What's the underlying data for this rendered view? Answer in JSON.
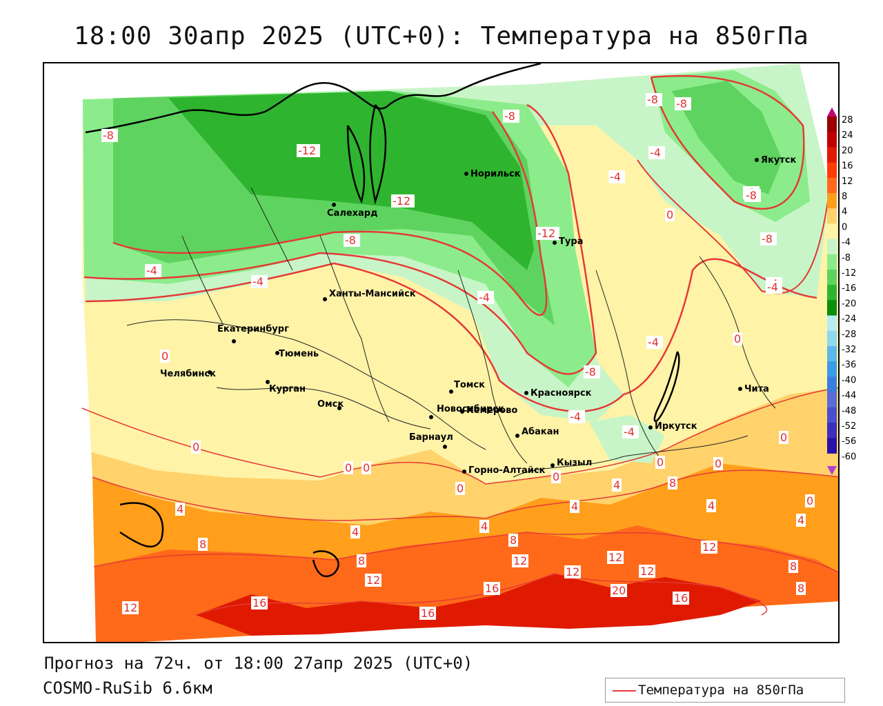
{
  "title": "18:00 30апр 2025 (UTC+0): Температура на 850гПа",
  "forecast_text": "Прогноз на 72ч. от 18:00 27апр 2025 (UTC+0)",
  "model_text": "COSMO-RuSib 6.6км",
  "legend_label": "Температура на 850гПа",
  "colors": {
    "contour_line": "#e53935",
    "t_12_16": "#ff6a1a",
    "t_8_12": "#ff9f1c",
    "t_4_8": "#ffd26b",
    "t_0_4": "#fff3a8",
    "t_m4_0": "#c8f5c8",
    "t_m8_m4": "#8cec8c",
    "t_m12_m8": "#5fd35f",
    "t_m16_m12": "#2fb42f"
  },
  "colorbar": {
    "ticks": [
      "28",
      "24",
      "20",
      "16",
      "12",
      "8",
      "4",
      "0",
      "-4",
      "-8",
      "-12",
      "-16",
      "-20",
      "-24",
      "-28",
      "-32",
      "-36",
      "-40",
      "-44",
      "-48",
      "-52",
      "-56",
      "-60"
    ],
    "colors": [
      "#9b0000",
      "#c00000",
      "#e01a00",
      "#ff3c00",
      "#ff6a1a",
      "#ff9f1c",
      "#ffd26b",
      "#fff3a8",
      "#c8f5c8",
      "#8cec8c",
      "#5fd35f",
      "#2fb42f",
      "#0b8f0b",
      "#b8ecf4",
      "#8ed8f0",
      "#5cb8ec",
      "#3d9ae8",
      "#3a7de0",
      "#5b6cd8",
      "#4a4ed0",
      "#3a2fc0",
      "#2a10a8"
    ]
  },
  "contour_labels": [
    {
      "text": "-8"
    },
    {
      "text": "-12"
    },
    {
      "text": "-8"
    },
    {
      "text": "-8"
    },
    {
      "text": "-8"
    },
    {
      "text": "-4"
    },
    {
      "text": "-4"
    },
    {
      "text": "-12"
    },
    {
      "text": "-12"
    },
    {
      "text": "-8"
    },
    {
      "text": "-8"
    },
    {
      "text": "-8"
    },
    {
      "text": "-4"
    },
    {
      "text": "-4"
    },
    {
      "text": "-4"
    },
    {
      "text": "-4"
    },
    {
      "text": "-8"
    },
    {
      "text": "-4"
    },
    {
      "text": "-4"
    },
    {
      "text": "0"
    },
    {
      "text": "0"
    },
    {
      "text": "0"
    },
    {
      "text": "0"
    },
    {
      "text": "0"
    },
    {
      "text": "0"
    },
    {
      "text": "0"
    },
    {
      "text": "0"
    },
    {
      "text": "0"
    },
    {
      "text": "0"
    },
    {
      "text": "0"
    },
    {
      "text": "4"
    },
    {
      "text": "4"
    },
    {
      "text": "4"
    },
    {
      "text": "4"
    },
    {
      "text": "4"
    },
    {
      "text": "4"
    },
    {
      "text": "4"
    },
    {
      "text": "8"
    },
    {
      "text": "8"
    },
    {
      "text": "8"
    },
    {
      "text": "8"
    },
    {
      "text": "8"
    },
    {
      "text": "8"
    },
    {
      "text": "12"
    },
    {
      "text": "12"
    },
    {
      "text": "12"
    },
    {
      "text": "12"
    },
    {
      "text": "12"
    },
    {
      "text": "12"
    },
    {
      "text": "16"
    },
    {
      "text": "16"
    },
    {
      "text": "16"
    },
    {
      "text": "16"
    },
    {
      "text": "20"
    },
    {
      "text": "12"
    },
    {
      "text": "0"
    },
    {
      "text": "-4"
    },
    {
      "text": "-8"
    },
    {
      "text": "-4"
    }
  ],
  "cities": [
    {
      "name": "Норильск"
    },
    {
      "name": "Салехард"
    },
    {
      "name": "Тура"
    },
    {
      "name": "Якутск"
    },
    {
      "name": "Ханты-Мансийск"
    },
    {
      "name": "Екатеринбург"
    },
    {
      "name": "Тюмень"
    },
    {
      "name": "Челябинск"
    },
    {
      "name": "Курган"
    },
    {
      "name": "Омск"
    },
    {
      "name": "Новосибирск"
    },
    {
      "name": "Томск"
    },
    {
      "name": "Кемерово"
    },
    {
      "name": "Красноярск"
    },
    {
      "name": "Абакан"
    },
    {
      "name": "Иркутск"
    },
    {
      "name": "Чита"
    },
    {
      "name": "Барнаул"
    },
    {
      "name": "Горно-Алтайск"
    },
    {
      "name": "Кызыл"
    }
  ]
}
